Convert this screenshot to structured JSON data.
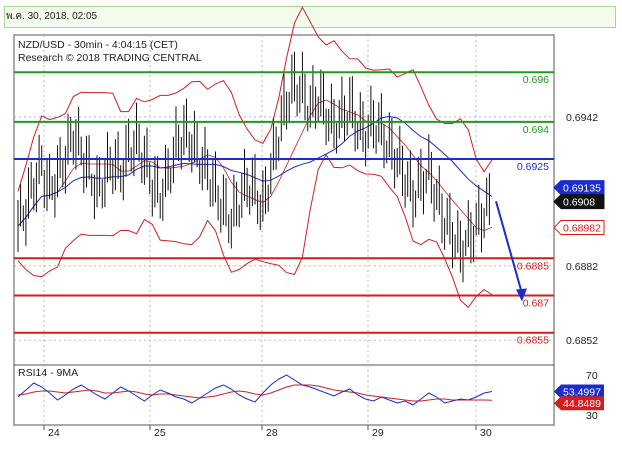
{
  "timestamp": "พ.ค. 30, 2018, 02:05",
  "chart_data": {
    "type": "candlestick",
    "symbol_line": "NZD/USD - 30min - 4:04:15 (CET)",
    "research_line": "Research © 2018 TRADING CENTRAL",
    "y_range": [
      0.6842,
      0.6975
    ],
    "y_ticks": [
      "0.6942",
      "0.6882",
      "0.6852"
    ],
    "y_tick_values": [
      0.6942,
      0.6882,
      0.6852
    ],
    "x_labels": [
      "24",
      "25",
      "28",
      "29",
      "30"
    ],
    "levels": [
      {
        "label": "0.696",
        "value": 0.696,
        "color": "#1f9a1f"
      },
      {
        "label": "0.694",
        "value": 0.694,
        "color": "#1f9a1f"
      },
      {
        "label": "0.6925",
        "value": 0.6925,
        "color": "#1a2ccc"
      },
      {
        "label": "0.6885",
        "value": 0.6885,
        "color": "#d21e1e"
      },
      {
        "label": "0.687",
        "value": 0.687,
        "color": "#d21e1e"
      },
      {
        "label": "0.6855",
        "value": 0.6855,
        "color": "#d21e1e"
      }
    ],
    "price_badges": [
      {
        "label": "0.69135",
        "value": 0.69135,
        "color": "#1a2ccc"
      },
      {
        "label": "0.6908",
        "value": 0.6908,
        "color": "#111111"
      },
      {
        "label": "0.68982",
        "value": 0.68982,
        "color": "#d21e1e"
      }
    ],
    "price_path": [
      0.6898,
      0.6905,
      0.6915,
      0.6922,
      0.6912,
      0.6918,
      0.6925,
      0.6935,
      0.6928,
      0.692,
      0.6912,
      0.6918,
      0.6924,
      0.6919,
      0.6928,
      0.6932,
      0.6925,
      0.6915,
      0.691,
      0.6918,
      0.693,
      0.6935,
      0.6932,
      0.6925,
      0.692,
      0.6912,
      0.6905,
      0.69,
      0.6908,
      0.6915,
      0.6912,
      0.6905,
      0.692,
      0.6935,
      0.6948,
      0.6955,
      0.6952,
      0.6945,
      0.695,
      0.6943,
      0.6938,
      0.6942,
      0.6946,
      0.6938,
      0.6935,
      0.694,
      0.6936,
      0.693,
      0.6925,
      0.6918,
      0.691,
      0.6915,
      0.692,
      0.691,
      0.69,
      0.6895,
      0.6888,
      0.6893,
      0.6898,
      0.6903,
      0.6908
    ],
    "forecast_arrow": {
      "from": 0.6908,
      "to": 0.687
    },
    "rsi": {
      "label": "RSI14 - 9MA",
      "y_range": [
        20,
        80
      ],
      "ticks": [
        "70",
        "30"
      ],
      "tick_values": [
        70,
        30
      ],
      "rsi_value_label": "53.4997",
      "ma_value_label": "44.8489",
      "values": [
        48,
        55,
        62,
        58,
        52,
        45,
        50,
        56,
        60,
        55,
        50,
        46,
        52,
        58,
        54,
        49,
        44,
        50,
        55,
        52,
        48,
        46,
        42,
        47,
        52,
        57,
        60,
        56,
        50,
        46,
        43,
        52,
        60,
        66,
        70,
        65,
        60,
        58,
        55,
        52,
        49,
        53,
        56,
        50,
        46,
        44,
        48,
        45,
        42,
        44,
        40,
        46,
        52,
        48,
        42,
        44,
        46,
        45,
        48,
        52,
        53.5
      ],
      "ma_values": [
        50,
        51,
        53,
        54,
        54,
        53,
        52,
        53,
        54,
        55,
        54,
        52,
        52,
        53,
        54,
        53,
        51,
        50,
        51,
        51,
        50,
        49,
        48,
        47,
        48,
        49,
        51,
        53,
        54,
        53,
        51,
        50,
        52,
        55,
        58,
        60,
        60,
        60,
        59,
        57,
        55,
        54,
        53,
        52,
        50,
        49,
        48,
        47,
        46,
        45,
        44,
        44,
        45,
        46,
        46,
        45,
        45,
        45,
        45,
        45,
        44.8
      ]
    }
  }
}
